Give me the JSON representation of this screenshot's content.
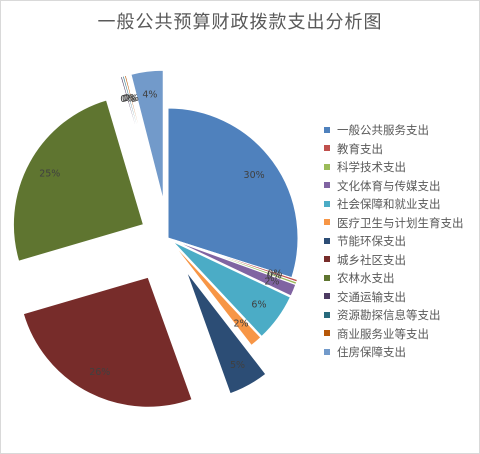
{
  "chart_data": {
    "type": "pie",
    "title": "一般公共预算财政拨款支出分析图",
    "start_angle_deg": 0,
    "direction": "clockwise",
    "exploded": true,
    "legend_position": "right",
    "slices": [
      {
        "name": "一般公共服务支出",
        "value": 30,
        "label": "30%",
        "color": "#4f81bd"
      },
      {
        "name": "教育支出",
        "value": 0.3,
        "label": "0%",
        "color": "#c0504d"
      },
      {
        "name": "科学技术支出",
        "value": 0.3,
        "label": "0%",
        "color": "#9bbb59"
      },
      {
        "name": "文化体育与传媒支出",
        "value": 1.5,
        "label": "2%",
        "color": "#8064a2"
      },
      {
        "name": "社会保障和就业支出",
        "value": 6,
        "label": "6%",
        "color": "#4bacc6"
      },
      {
        "name": "医疗卫生与计划生育支出",
        "value": 1.5,
        "label": "2%",
        "color": "#f79646"
      },
      {
        "name": "节能环保支出",
        "value": 5,
        "label": "5%",
        "color": "#2c4d75"
      },
      {
        "name": "城乡社区支出",
        "value": 26,
        "label": "26%",
        "color": "#772c2a"
      },
      {
        "name": "农林水支出",
        "value": 25,
        "label": "25%",
        "color": "#5f7530"
      },
      {
        "name": "交通运输支出",
        "value": 0.2,
        "label": "0%",
        "color": "#4d3b62"
      },
      {
        "name": "资源勘探信息等支出",
        "value": 0.2,
        "label": "0%",
        "color": "#276a7c"
      },
      {
        "name": "商业服务业等支出",
        "value": 0.2,
        "label": "0%",
        "color": "#b65708"
      },
      {
        "name": "住房保障支出",
        "value": 4,
        "label": "4%",
        "color": "#729aca"
      }
    ]
  }
}
